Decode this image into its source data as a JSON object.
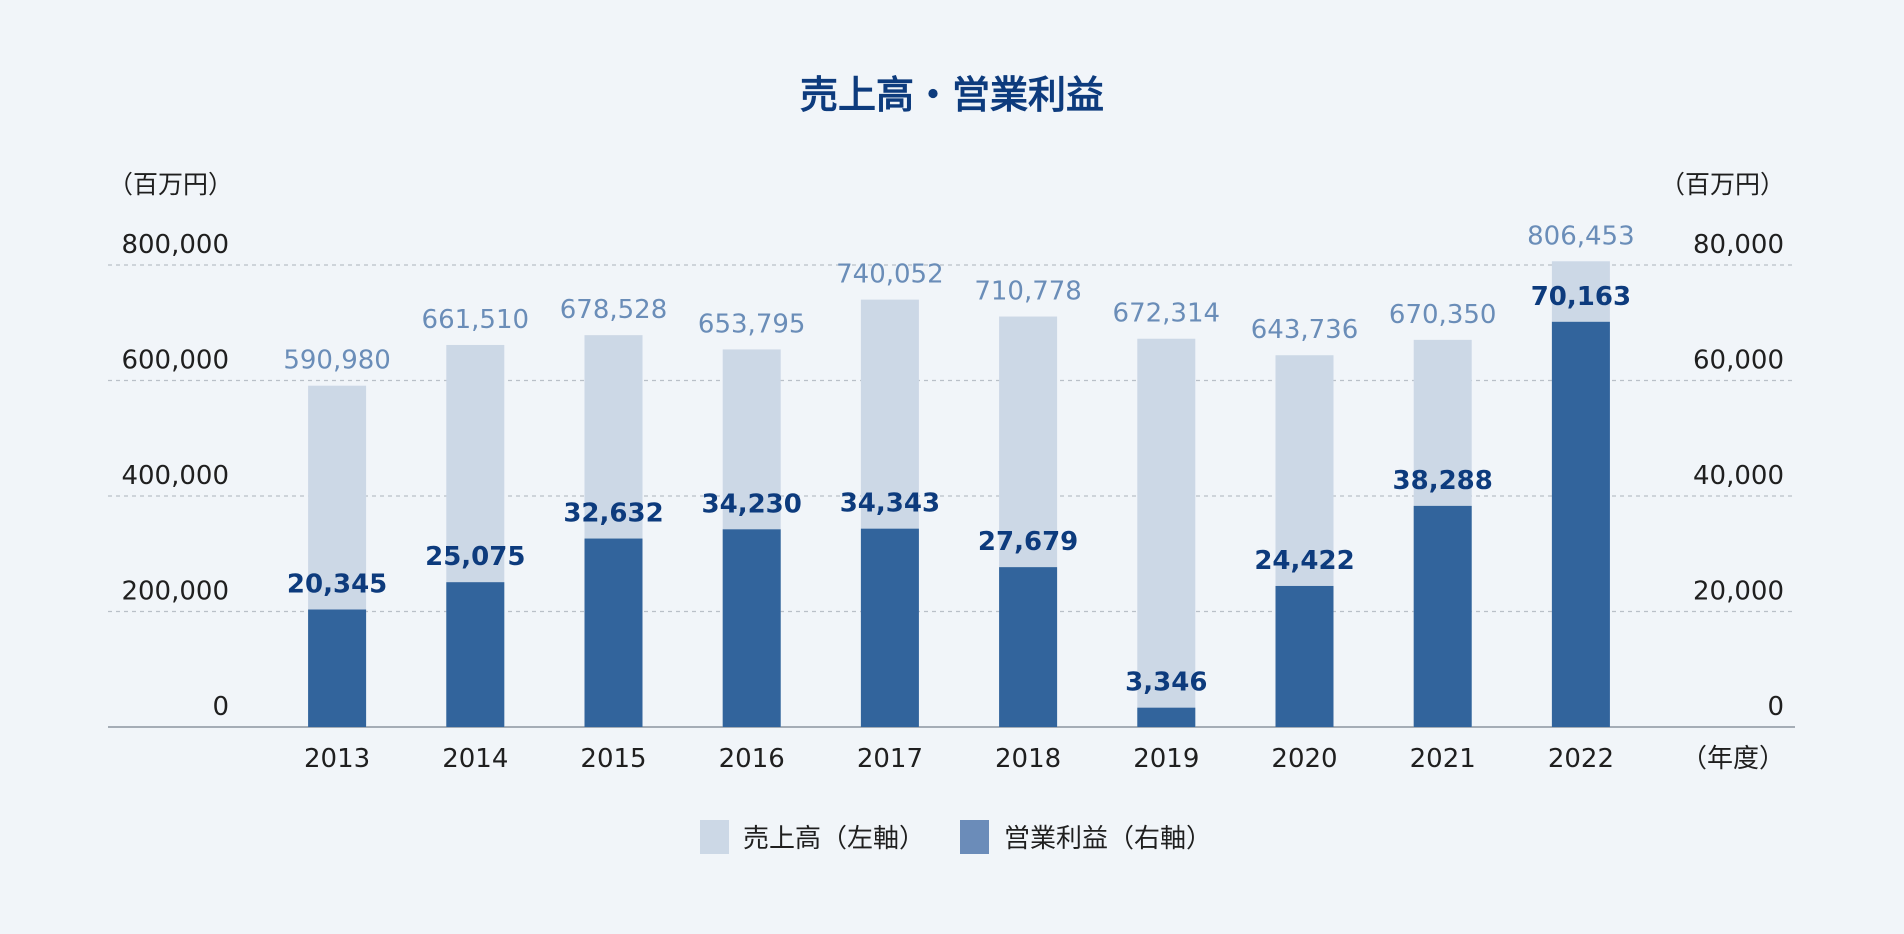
{
  "chart_data": {
    "type": "bar",
    "title": "売上高・営業利益",
    "categories": [
      "2013",
      "2014",
      "2015",
      "2016",
      "2017",
      "2018",
      "2019",
      "2020",
      "2021",
      "2022"
    ],
    "series": [
      {
        "name": "売上高（左軸）",
        "axis": "left",
        "color": "#ccd8e6",
        "label_color": "#6a8db8",
        "values": [
          590980,
          661510,
          678528,
          653795,
          740052,
          710778,
          672314,
          643736,
          670350,
          806453
        ],
        "labels": [
          "590,980",
          "661,510",
          "678,528",
          "653,795",
          "740,052",
          "710,778",
          "672,314",
          "643,736",
          "670,350",
          "806,453"
        ]
      },
      {
        "name": "営業利益（右軸）",
        "axis": "right",
        "color": "#32649c",
        "label_color": "#0d3b7d",
        "values": [
          20345,
          25075,
          32632,
          34230,
          34343,
          27679,
          3346,
          24422,
          38288,
          70163
        ],
        "labels": [
          "20,345",
          "25,075",
          "32,632",
          "34,230",
          "34,343",
          "27,679",
          "3,346",
          "24,422",
          "38,288",
          "70,163"
        ]
      }
    ],
    "left_axis": {
      "unit": "（百万円）",
      "ylim": [
        0,
        800000
      ],
      "ticks": [
        "0",
        "200,000",
        "400,000",
        "600,000",
        "800,000"
      ]
    },
    "right_axis": {
      "unit": "（百万円）",
      "ylim": [
        0,
        80000
      ],
      "ticks": [
        "0",
        "20,000",
        "40,000",
        "60,000",
        "80,000"
      ]
    },
    "x_unit": "（年度）",
    "grid": true,
    "legend_position": "bottom-center",
    "legend": [
      {
        "label": "売上高（左軸）",
        "color": "#ccd8e6"
      },
      {
        "label": "営業利益（右軸）",
        "color": "#6b8cb9"
      }
    ],
    "title_color": "#0d3b7d"
  }
}
